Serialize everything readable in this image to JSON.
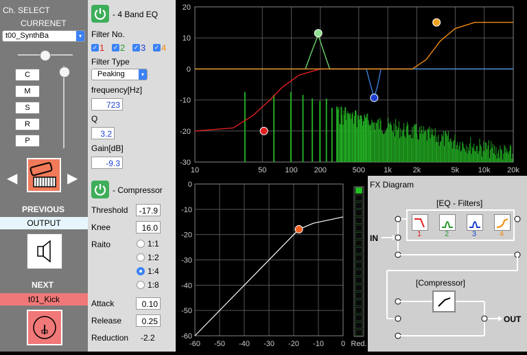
{
  "left": {
    "ch_select": "Ch. SELECT",
    "current_label": "CURRENET",
    "current_channel": "t00_SynthBa",
    "buttons": [
      "C",
      "M",
      "S",
      "R",
      "P"
    ],
    "previous_label": "PREVIOUS",
    "previous_value": "OUTPUT",
    "next_label": "NEXT",
    "next_value": "t01_Kick"
  },
  "eq": {
    "title": "- 4 Band EQ",
    "filter_no_label": "Filter No.",
    "filters": [
      {
        "label": "1",
        "color": "#e02020",
        "checked": true
      },
      {
        "label": "2",
        "color": "#2a9a2a",
        "checked": true
      },
      {
        "label": "3",
        "color": "#1a3fd0",
        "checked": true
      },
      {
        "label": "4",
        "color": "#f08a10",
        "checked": true
      }
    ],
    "filter_type_label": "Filter Type",
    "filter_type": "Peaking",
    "frequency_label": "frequency[Hz]",
    "frequency": "723",
    "q_label": "Q",
    "q": "3.2",
    "gain_label": "Gain[dB]",
    "gain": "-9.3"
  },
  "comp": {
    "title": "- Compressor",
    "threshold_label": "Threshold",
    "threshold": "-17.9",
    "knee_label": "Knee",
    "knee": "16.0",
    "ratio_label": "Raito",
    "ratios": [
      "1:1",
      "1:2",
      "1:4",
      "1:8"
    ],
    "ratio_selected": 2,
    "attack_label": "Attack",
    "attack": "0.10",
    "release_label": "Release",
    "release": "0.25",
    "reduction_label": "Reduction",
    "reduction": "-2.2"
  },
  "chart_data": [
    {
      "type": "line",
      "xscale": "log",
      "xlim": [
        10,
        20000
      ],
      "ylim": [
        -30,
        20
      ],
      "x_ticks": [
        "10",
        "50",
        "100",
        "200",
        "500",
        "1k",
        "2k",
        "5k",
        "10k",
        "20k"
      ],
      "y_ticks": [
        "20",
        "10",
        "0",
        "-10",
        "-20",
        "-30"
      ],
      "grid": true,
      "series": [
        {
          "color": "#e02020",
          "points": [
            [
              10,
              -20
            ],
            [
              25,
              -19
            ],
            [
              40,
              -15
            ],
            [
              60,
              -10
            ],
            [
              80,
              -6
            ],
            [
              120,
              -2
            ],
            [
              200,
              0
            ],
            [
              20000,
              0
            ]
          ]
        },
        {
          "color": "#6ad46a",
          "points": [
            [
              10,
              0
            ],
            [
              140,
              0
            ],
            [
              160,
              5
            ],
            [
              190,
              11
            ],
            [
              220,
              5
            ],
            [
              250,
              0
            ],
            [
              20000,
              0
            ]
          ]
        },
        {
          "color": "#3b7fe0",
          "points": [
            [
              10,
              0
            ],
            [
              600,
              0
            ],
            [
              660,
              -5
            ],
            [
              723,
              -9.3
            ],
            [
              790,
              -5
            ],
            [
              850,
              0
            ],
            [
              20000,
              0
            ]
          ]
        },
        {
          "color": "#f08a10",
          "points": [
            [
              10,
              0
            ],
            [
              1800,
              0
            ],
            [
              2500,
              3
            ],
            [
              3500,
              9
            ],
            [
              5000,
              13
            ],
            [
              8000,
              15
            ],
            [
              20000,
              15
            ]
          ]
        }
      ],
      "filter_points": [
        {
          "label": "1",
          "x": 52,
          "y": -20,
          "color": "#e02020"
        },
        {
          "label": "2",
          "x": 190,
          "y": 11.5,
          "color": "#8fe08f"
        },
        {
          "label": "3",
          "x": 723,
          "y": -9.3,
          "color": "#1a3fd0"
        },
        {
          "label": "4",
          "x": 3200,
          "y": 15,
          "color": "#f0a020"
        }
      ],
      "spectrum_color": "#22aa22"
    },
    {
      "type": "line",
      "xlim": [
        -60,
        0
      ],
      "ylim": [
        -60,
        0
      ],
      "x_ticks": [
        "-60",
        "-50",
        "-40",
        "-30",
        "-20",
        "-10",
        "0"
      ],
      "y_ticks": [
        "0",
        "-10",
        "-20",
        "-30",
        "-40",
        "-50",
        "-60"
      ],
      "grid": true,
      "series": [
        {
          "color": "#ffffff",
          "points": [
            [
              -60,
              -60
            ],
            [
              -20,
              -20
            ],
            [
              -17.9,
              -17.9
            ],
            [
              -12,
              -15.5
            ],
            [
              0,
              -13
            ]
          ]
        }
      ],
      "threshold_point": {
        "x": -17.9,
        "y": -17.9,
        "color": "#f06020"
      },
      "meter_label": "Red.",
      "meter_value": -2.2
    }
  ],
  "fx": {
    "title": "FX Diagram",
    "eq_label": "[EQ - Filters]",
    "filter_nums": [
      "1",
      "2",
      "3",
      "4"
    ],
    "filter_colors": [
      "#e02020",
      "#2a9a2a",
      "#1a3fd0",
      "#f08a10"
    ],
    "in_label": "IN",
    "comp_label": "[Compressor]",
    "out_label": "OUT"
  }
}
